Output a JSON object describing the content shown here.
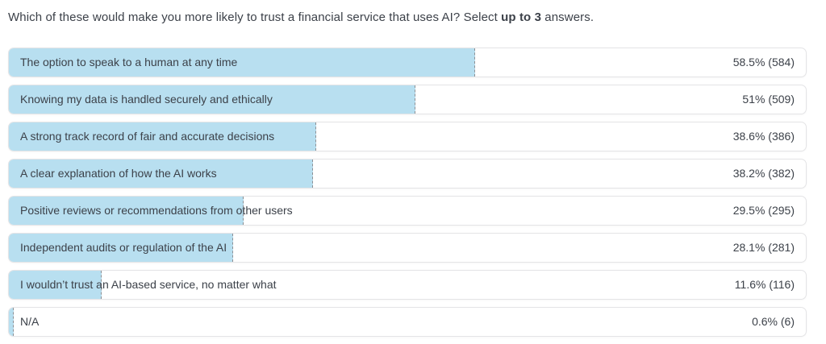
{
  "title": {
    "prefix": "Which of these would make you more likely to trust a financial service that uses AI? Select ",
    "bold": "up to 3",
    "suffix": " answers."
  },
  "colors": {
    "bar_fill": "#b8dff0",
    "row_border": "#e4e4e6",
    "bar_dash_line": "#8c8f94",
    "text": "#3c4149",
    "background": "#ffffff"
  },
  "chart_data": {
    "type": "bar",
    "orientation": "horizontal",
    "title": "Which of these would make you more likely to trust a financial service that uses AI? Select up to 3 answers.",
    "categories": [
      "The option to speak to a human at any time",
      "Knowing my data is handled securely and ethically",
      "A strong track record of fair and accurate decisions",
      "A clear explanation of how the AI works",
      "Positive reviews or recommendations from other users",
      "Independent audits or regulation of the AI",
      "I wouldn’t trust an AI-based service, no matter what",
      "N/A"
    ],
    "values": [
      58.5,
      51,
      38.6,
      38.2,
      29.5,
      28.1,
      11.6,
      0.6
    ],
    "counts": [
      584,
      509,
      386,
      382,
      295,
      281,
      116,
      6
    ],
    "value_labels": [
      "58.5% (584)",
      "51% (509)",
      "38.6% (386)",
      "38.2% (382)",
      "29.5% (295)",
      "28.1% (281)",
      "11.6% (116)",
      "0.6% (6)"
    ],
    "xlabel": "",
    "ylabel": "",
    "xlim": [
      0,
      100
    ],
    "grid": false,
    "legend": false
  }
}
